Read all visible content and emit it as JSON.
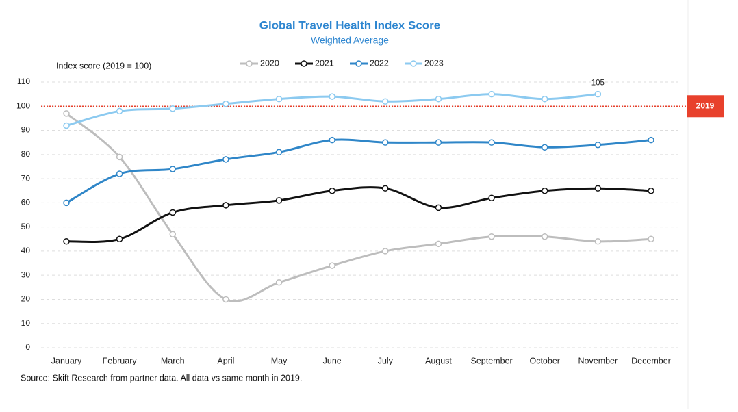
{
  "chart_data": {
    "type": "line",
    "title": "Global Travel Health Index Score",
    "subtitle": "Weighted Average",
    "y_axis_label": "Index score (2019 = 100)",
    "source": "Source: Skift Research from partner data. All data vs same month in 2019.",
    "categories": [
      "January",
      "February",
      "March",
      "April",
      "May",
      "June",
      "July",
      "August",
      "September",
      "October",
      "November",
      "December"
    ],
    "series": [
      {
        "name": "2020",
        "color": "#bdbdbd",
        "values": [
          97,
          79,
          47,
          20,
          27,
          34,
          40,
          43,
          46,
          46,
          44,
          45
        ]
      },
      {
        "name": "2021",
        "color": "#111111",
        "values": [
          44,
          45,
          56,
          59,
          61,
          65,
          66,
          58,
          62,
          65,
          66,
          65
        ]
      },
      {
        "name": "2022",
        "color": "#2f86c8",
        "values": [
          60,
          72,
          74,
          78,
          81,
          86,
          85,
          85,
          85,
          83,
          84,
          86
        ]
      },
      {
        "name": "2023",
        "color": "#8ccaf0",
        "values": [
          92,
          98,
          99,
          101,
          103,
          104,
          102,
          103,
          105,
          103,
          105,
          null
        ],
        "label_last_point": true
      }
    ],
    "ylim": [
      0,
      110
    ],
    "yticks": [
      0,
      10,
      20,
      30,
      40,
      50,
      60,
      70,
      80,
      90,
      100,
      110
    ],
    "grid": true,
    "reference_line": {
      "value": 100,
      "label": "2019",
      "color": "#e8412c"
    },
    "smooth": true
  }
}
